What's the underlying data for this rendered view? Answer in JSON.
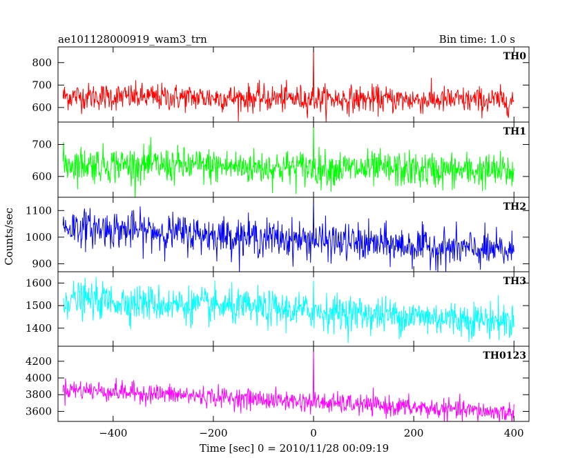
{
  "header": {
    "left": "ae101128000919_wam3_trn",
    "right": "Bin time: 1.0 s"
  },
  "chart_data": {
    "type": "line",
    "xlabel": "Time [sec] 0 = 2010/11/28 00:09:19",
    "ylabel": "Counts/sec",
    "xlim": [
      -510,
      430
    ],
    "x_ticks": [
      -400,
      -200,
      0,
      200,
      400
    ],
    "x_tick_labels": [
      "−400",
      "−200",
      "0",
      "200",
      "400"
    ],
    "x_range": [
      -500,
      400
    ],
    "bin_seconds": 1.0,
    "grid": false,
    "panels": [
      {
        "name": "TH0",
        "color": "#ff0000",
        "ylim": [
          535,
          870
        ],
        "y_ticks": [
          600,
          700,
          800
        ],
        "approx_mean_start": 650,
        "approx_mean_end": 630,
        "approx_noise_sd": 30,
        "spike": {
          "x": 0,
          "peak": 870
        }
      },
      {
        "name": "TH1",
        "color": "#00ff00",
        "ylim": [
          535,
          770
        ],
        "y_ticks": [
          600,
          700
        ],
        "approx_mean_start": 640,
        "approx_mean_end": 615,
        "approx_noise_sd": 28,
        "spike": {
          "x": 0,
          "peak": 770
        }
      },
      {
        "name": "TH2",
        "color": "#0000ff",
        "ylim": [
          870,
          1150
        ],
        "y_ticks": [
          900,
          1000,
          1100
        ],
        "approx_mean_start": 1040,
        "approx_mean_end": 945,
        "approx_noise_sd": 35,
        "spike": {
          "x": 0,
          "peak": 1150
        }
      },
      {
        "name": "TH3",
        "color": "#00ffff",
        "ylim": [
          1320,
          1650
        ],
        "y_ticks": [
          1400,
          1500,
          1600
        ],
        "approx_mean_start": 1530,
        "approx_mean_end": 1430,
        "approx_noise_sd": 40,
        "spike": {
          "x": 0,
          "peak": 1610
        }
      },
      {
        "name": "TH0123",
        "color": "#ff00ff",
        "ylim": [
          3480,
          4380
        ],
        "y_ticks": [
          3600,
          3800,
          4000,
          4200
        ],
        "approx_mean_start": 3870,
        "approx_mean_end": 3580,
        "approx_noise_sd": 60,
        "spike": {
          "x": 0,
          "peak": 4380
        }
      }
    ]
  }
}
